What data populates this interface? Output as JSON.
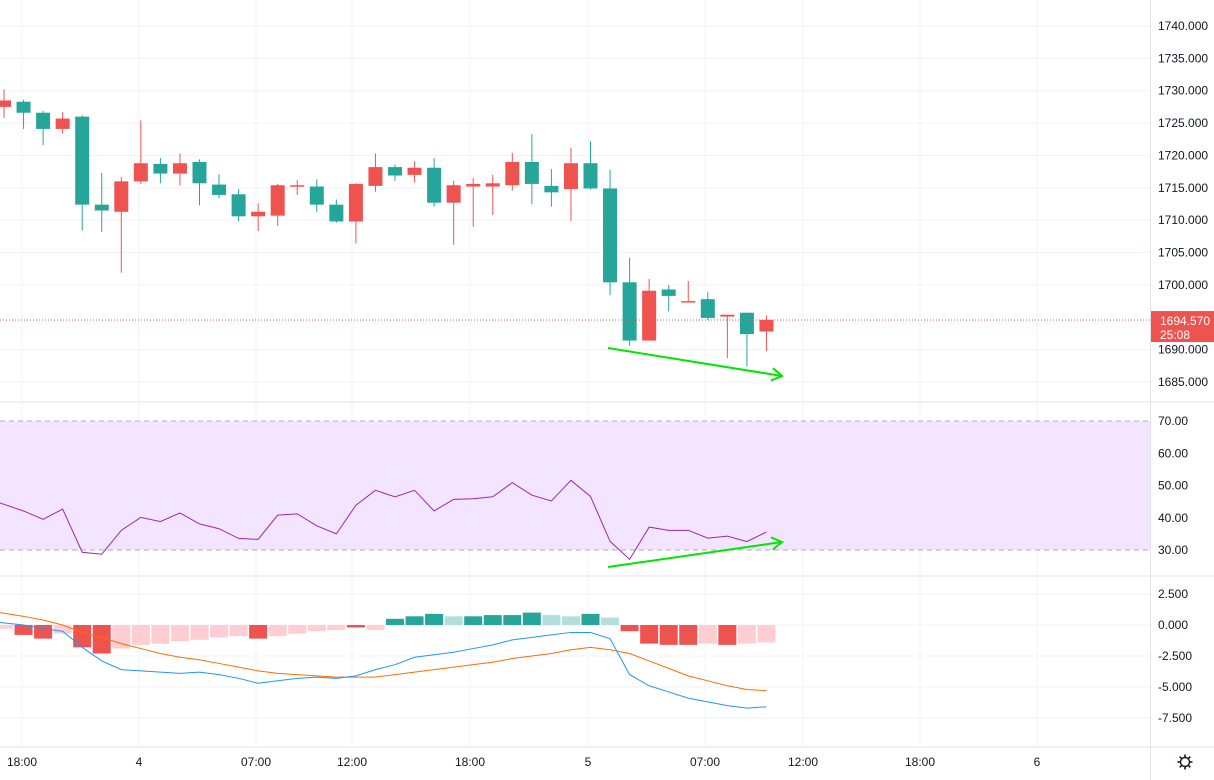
{
  "chart_data": [
    {
      "type": "candlestick",
      "panel": "price",
      "ylim": [
        1680,
        1742
      ],
      "y_ticks": [
        "1740.000",
        "1735.000",
        "1730.000",
        "1725.000",
        "1720.000",
        "1715.000",
        "1710.000",
        "1705.000",
        "1700.000",
        "1690.000",
        "1685.000"
      ],
      "y_tick_values": [
        1740,
        1735,
        1730,
        1725,
        1720,
        1715,
        1710,
        1705,
        1700,
        1690,
        1685
      ],
      "last_price": "1694.570",
      "last_price_value": 1694.57,
      "countdown": "25:08",
      "x_ticks": [
        "18:00",
        "4",
        "07:00",
        "12:00",
        "18:00",
        "5",
        "07:00",
        "12:00",
        "18:00",
        "6"
      ],
      "candles": [
        {
          "o": 1727.5,
          "h": 1730.2,
          "l": 1725.8,
          "c": 1728.5
        },
        {
          "o": 1728.3,
          "h": 1728.6,
          "l": 1724.1,
          "c": 1726.6
        },
        {
          "o": 1726.6,
          "h": 1726.9,
          "l": 1721.6,
          "c": 1724.1
        },
        {
          "o": 1724.1,
          "h": 1726.7,
          "l": 1723.4,
          "c": 1725.7
        },
        {
          "o": 1726.0,
          "h": 1726.2,
          "l": 1708.4,
          "c": 1712.4
        },
        {
          "o": 1712.4,
          "h": 1717.3,
          "l": 1708.2,
          "c": 1711.5
        },
        {
          "o": 1711.3,
          "h": 1716.7,
          "l": 1701.9,
          "c": 1716.0
        },
        {
          "o": 1716.0,
          "h": 1725.4,
          "l": 1715.6,
          "c": 1718.8
        },
        {
          "o": 1718.7,
          "h": 1719.6,
          "l": 1715.7,
          "c": 1717.2
        },
        {
          "o": 1717.2,
          "h": 1720.3,
          "l": 1715.4,
          "c": 1718.8
        },
        {
          "o": 1719.0,
          "h": 1719.4,
          "l": 1712.3,
          "c": 1715.7
        },
        {
          "o": 1715.5,
          "h": 1717.1,
          "l": 1713.4,
          "c": 1713.9
        },
        {
          "o": 1714.0,
          "h": 1714.8,
          "l": 1709.8,
          "c": 1710.6
        },
        {
          "o": 1710.6,
          "h": 1712.6,
          "l": 1708.3,
          "c": 1711.3
        },
        {
          "o": 1710.7,
          "h": 1715.6,
          "l": 1709.1,
          "c": 1715.4
        },
        {
          "o": 1715.2,
          "h": 1716.2,
          "l": 1713.9,
          "c": 1715.4
        },
        {
          "o": 1715.2,
          "h": 1716.3,
          "l": 1711.3,
          "c": 1712.4
        },
        {
          "o": 1712.4,
          "h": 1713.2,
          "l": 1709.6,
          "c": 1709.8
        },
        {
          "o": 1709.8,
          "h": 1715.7,
          "l": 1706.4,
          "c": 1715.6
        },
        {
          "o": 1715.3,
          "h": 1720.3,
          "l": 1714.4,
          "c": 1718.2
        },
        {
          "o": 1718.2,
          "h": 1718.6,
          "l": 1716.1,
          "c": 1716.9
        },
        {
          "o": 1717.0,
          "h": 1719.1,
          "l": 1715.8,
          "c": 1718.1
        },
        {
          "o": 1718.1,
          "h": 1719.6,
          "l": 1712.1,
          "c": 1712.7
        },
        {
          "o": 1712.7,
          "h": 1716.1,
          "l": 1706.2,
          "c": 1715.4
        },
        {
          "o": 1715.2,
          "h": 1716.5,
          "l": 1709.0,
          "c": 1715.6
        },
        {
          "o": 1715.2,
          "h": 1717.0,
          "l": 1710.8,
          "c": 1715.7
        },
        {
          "o": 1715.4,
          "h": 1720.4,
          "l": 1714.6,
          "c": 1719.0
        },
        {
          "o": 1719.0,
          "h": 1723.3,
          "l": 1712.5,
          "c": 1715.6
        },
        {
          "o": 1715.3,
          "h": 1717.9,
          "l": 1712.1,
          "c": 1714.3
        },
        {
          "o": 1714.8,
          "h": 1721.2,
          "l": 1709.9,
          "c": 1718.8
        },
        {
          "o": 1718.8,
          "h": 1722.2,
          "l": 1714.7,
          "c": 1714.9
        },
        {
          "o": 1714.9,
          "h": 1717.8,
          "l": 1698.4,
          "c": 1700.4
        },
        {
          "o": 1700.4,
          "h": 1704.2,
          "l": 1690.6,
          "c": 1691.4
        },
        {
          "o": 1691.4,
          "h": 1700.9,
          "l": 1691.4,
          "c": 1699.1
        },
        {
          "o": 1699.3,
          "h": 1700.0,
          "l": 1695.9,
          "c": 1698.3
        },
        {
          "o": 1697.5,
          "h": 1700.6,
          "l": 1697.3,
          "c": 1697.5
        },
        {
          "o": 1697.8,
          "h": 1698.9,
          "l": 1694.6,
          "c": 1694.9
        },
        {
          "o": 1695.1,
          "h": 1695.3,
          "l": 1688.7,
          "c": 1695.4
        },
        {
          "o": 1695.7,
          "h": 1695.7,
          "l": 1687.4,
          "c": 1692.4
        },
        {
          "o": 1692.8,
          "h": 1695.3,
          "l": 1689.8,
          "c": 1694.6
        }
      ],
      "colors": {
        "up": "#ef5350",
        "down": "#26a69a",
        "arrow": "#00e600",
        "price_line": "#ef5350"
      }
    },
    {
      "type": "line",
      "panel": "rsi",
      "ylim": [
        25,
        73
      ],
      "y_ticks": [
        "70.00",
        "60.00",
        "50.00",
        "40.00",
        "30.00"
      ],
      "y_tick_values": [
        70,
        60,
        50,
        40,
        30
      ],
      "band": [
        30,
        70
      ],
      "values": [
        44.6,
        42.1,
        39.5,
        42.7,
        29.3,
        28.7,
        36.1,
        40.1,
        38.8,
        41.5,
        38.1,
        36.6,
        33.6,
        33.3,
        40.8,
        41.2,
        37.5,
        35.0,
        43.9,
        48.5,
        46.5,
        48.5,
        42.1,
        45.7,
        45.9,
        46.5,
        50.9,
        47.0,
        45.2,
        51.6,
        46.6,
        32.7,
        27.1,
        37.1,
        36.1,
        36.1,
        33.7,
        34.3,
        32.6,
        35.6
      ],
      "colors": {
        "line": "#9c27b0",
        "band": "#f3e5ff",
        "arrow": "#00e600"
      }
    },
    {
      "type": "bar+line",
      "panel": "macd",
      "ylim": [
        -8.7,
        3.8
      ],
      "y_ticks": [
        "2.500",
        "0.000",
        "-2.500",
        "-5.000",
        "-7.500"
      ],
      "y_tick_values": [
        2.5,
        0,
        -2.5,
        -5,
        -7.5
      ],
      "histogram": [
        -0.3,
        -0.8,
        -1.1,
        -0.7,
        -1.8,
        -2.3,
        -1.9,
        -1.6,
        -1.5,
        -1.3,
        -1.2,
        -1.0,
        -0.9,
        -1.1,
        -0.9,
        -0.7,
        -0.5,
        -0.4,
        -0.2,
        -0.4,
        0.5,
        0.7,
        0.9,
        0.7,
        0.7,
        0.8,
        0.8,
        1.0,
        0.8,
        0.7,
        0.9,
        0.6,
        -0.5,
        -1.5,
        -1.6,
        -1.6,
        -1.5,
        -1.6,
        -1.5,
        -1.4
      ],
      "histogram_shade": [
        "light",
        "dark",
        "dark",
        "light",
        "dark",
        "dark",
        "light",
        "light",
        "light",
        "light",
        "light",
        "light",
        "light",
        "dark",
        "light",
        "light",
        "light",
        "light",
        "dark",
        "light",
        "dark",
        "dark",
        "dark",
        "light",
        "dark",
        "dark",
        "dark",
        "dark",
        "light",
        "light",
        "dark",
        "light",
        "dark",
        "dark",
        "dark",
        "dark",
        "light",
        "dark",
        "light",
        "light"
      ],
      "macd": [
        0.2,
        0.0,
        -0.3,
        -0.5,
        -1.8,
        -2.9,
        -3.6,
        -3.7,
        -3.8,
        -3.9,
        -3.8,
        -4.0,
        -4.3,
        -4.7,
        -4.5,
        -4.3,
        -4.2,
        -4.3,
        -4.1,
        -3.6,
        -3.2,
        -2.6,
        -2.4,
        -2.2,
        -1.9,
        -1.6,
        -1.2,
        -1.0,
        -0.8,
        -0.6,
        -0.6,
        -1.1,
        -4.0,
        -4.9,
        -5.4,
        -5.9,
        -6.2,
        -6.5,
        -6.7,
        -6.6
      ],
      "signal": [
        1.0,
        0.7,
        0.4,
        0.0,
        -0.6,
        -1.0,
        -1.5,
        -1.9,
        -2.3,
        -2.6,
        -2.8,
        -3.1,
        -3.4,
        -3.7,
        -3.9,
        -4.0,
        -4.1,
        -4.2,
        -4.2,
        -4.2,
        -4.0,
        -3.8,
        -3.6,
        -3.4,
        -3.2,
        -3.0,
        -2.7,
        -2.5,
        -2.3,
        -2.0,
        -1.8,
        -2.0,
        -2.3,
        -2.9,
        -3.5,
        -4.1,
        -4.5,
        -4.9,
        -5.2,
        -5.3
      ],
      "colors": {
        "macd": "#2196f3",
        "signal": "#ff6d00",
        "pos_dark": "#26a69a",
        "pos_light": "#b2dfdb",
        "neg_dark": "#ef5350",
        "neg_light": "#ffcdd2"
      }
    }
  ],
  "toolbar": {
    "settings_icon": "gear-icon"
  }
}
